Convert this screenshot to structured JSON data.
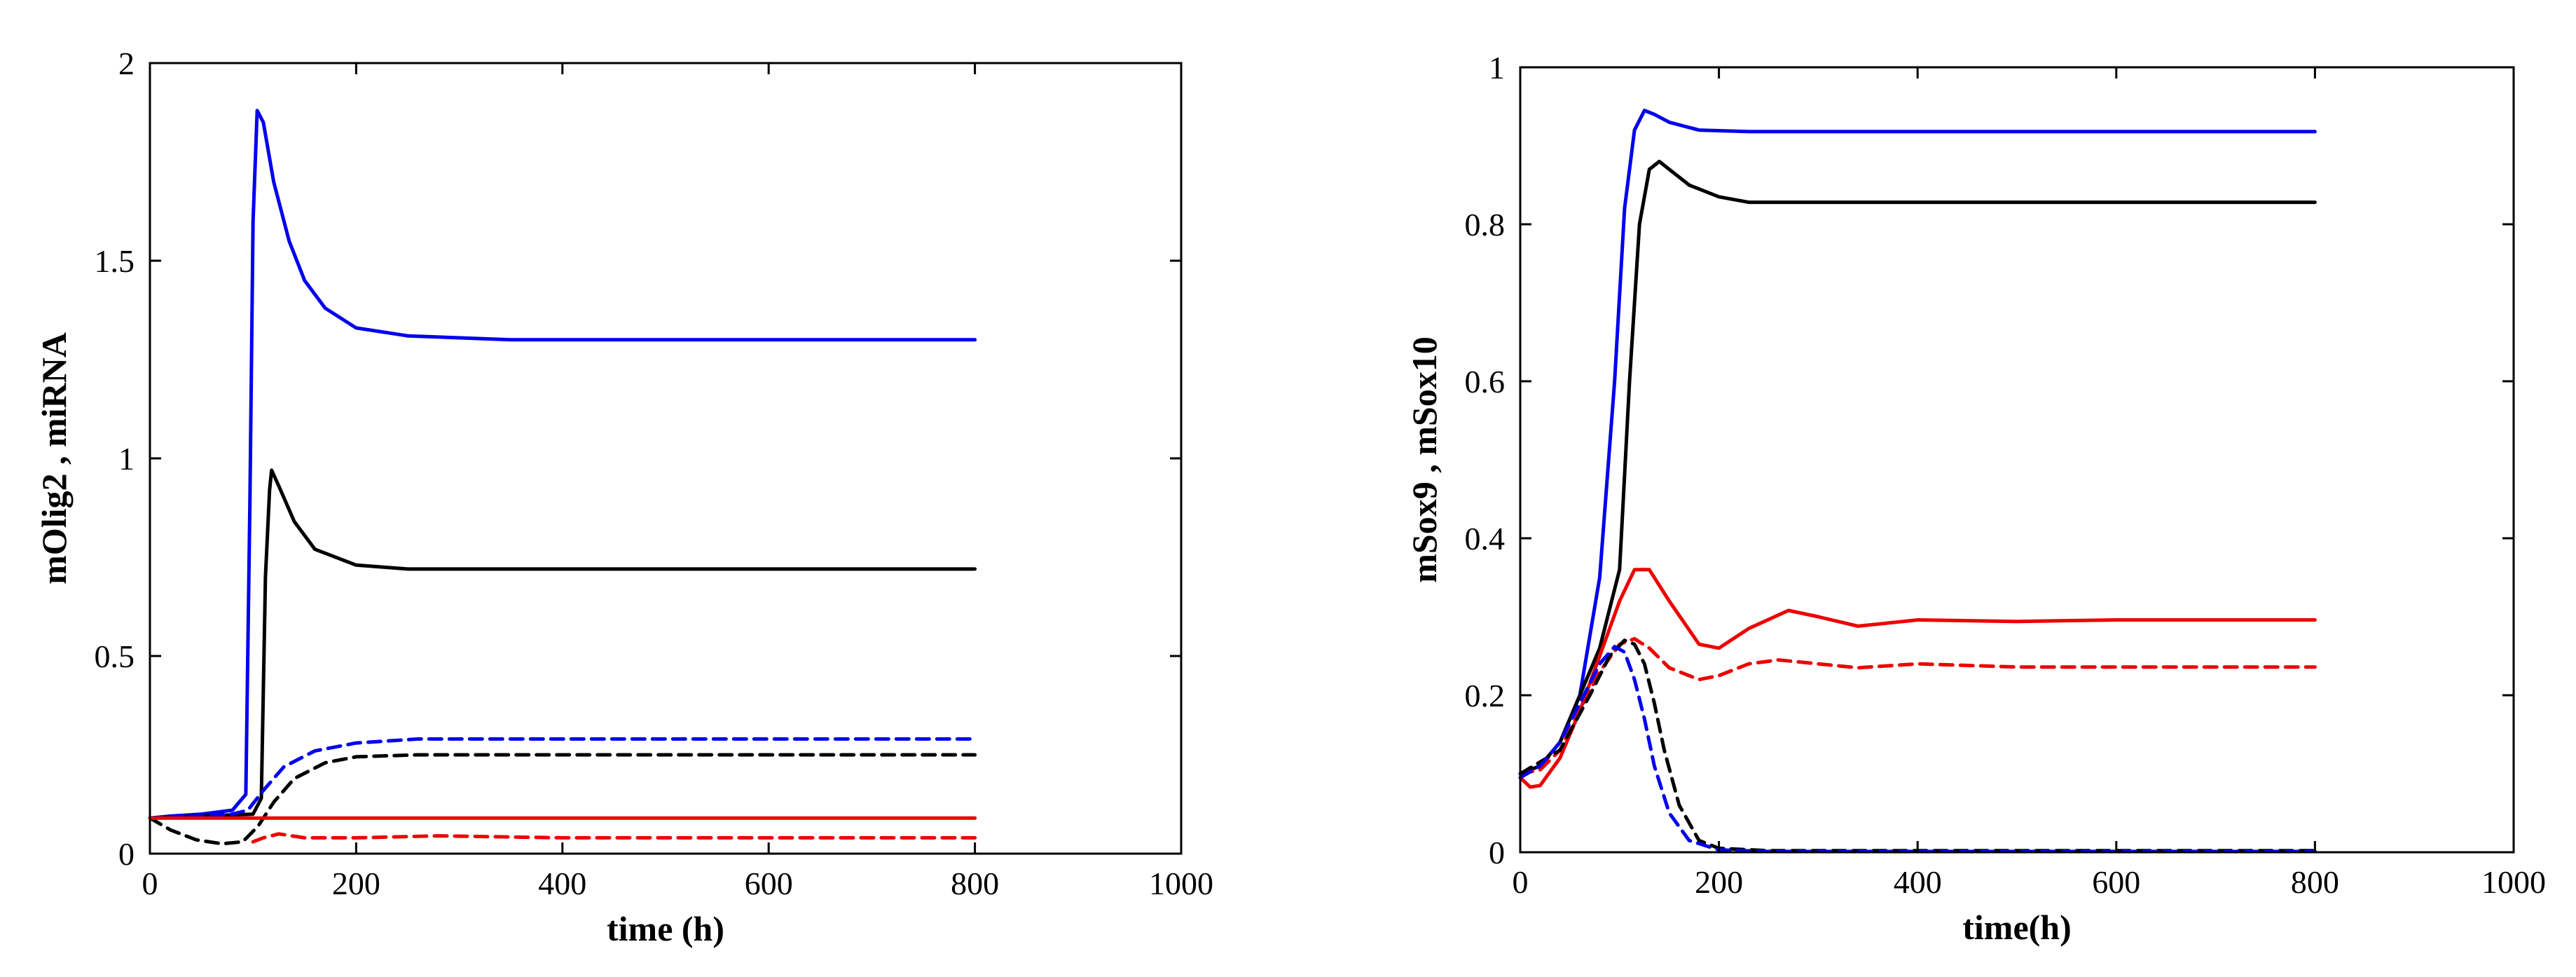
{
  "chart_data": [
    {
      "type": "line",
      "xlabel": "time (h)",
      "ylabel": "mOlig2 , miRNA",
      "xlim": [
        0,
        1000
      ],
      "ylim": [
        0,
        2
      ],
      "xticks": [
        0,
        200,
        400,
        600,
        800,
        1000
      ],
      "yticks": [
        0,
        0.5,
        1,
        1.5,
        2
      ],
      "xtick_labels": [
        "0",
        "200",
        "400",
        "600",
        "800",
        "1000"
      ],
      "ytick_labels": [
        "0",
        "0.5",
        "1",
        "1.5",
        "2"
      ],
      "series": [
        {
          "name": "blue solid",
          "color": "#0000ee",
          "dashed": false,
          "x": [
            0,
            20,
            50,
            80,
            93,
            97,
            100,
            104,
            110,
            120,
            135,
            150,
            170,
            200,
            250,
            350,
            500,
            800
          ],
          "y": [
            0.09,
            0.095,
            0.1,
            0.11,
            0.15,
            0.9,
            1.6,
            1.88,
            1.85,
            1.7,
            1.55,
            1.45,
            1.38,
            1.33,
            1.31,
            1.3,
            1.3,
            1.3
          ]
        },
        {
          "name": "black solid",
          "color": "#000000",
          "dashed": false,
          "x": [
            0,
            50,
            100,
            108,
            112,
            116,
            118,
            125,
            140,
            160,
            200,
            250,
            350,
            800
          ],
          "y": [
            0.09,
            0.095,
            0.1,
            0.14,
            0.7,
            0.92,
            0.97,
            0.93,
            0.84,
            0.77,
            0.73,
            0.72,
            0.72,
            0.72
          ]
        },
        {
          "name": "blue dashed",
          "color": "#0000ee",
          "dashed": true,
          "x": [
            0,
            50,
            80,
            95,
            110,
            130,
            160,
            200,
            260,
            350,
            800
          ],
          "y": [
            0.09,
            0.095,
            0.1,
            0.11,
            0.16,
            0.22,
            0.26,
            0.28,
            0.29,
            0.29,
            0.29
          ]
        },
        {
          "name": "black dashed",
          "color": "#000000",
          "dashed": true,
          "x": [
            0,
            20,
            45,
            70,
            90,
            105,
            120,
            140,
            170,
            200,
            260,
            350,
            800
          ],
          "y": [
            0.09,
            0.06,
            0.035,
            0.025,
            0.03,
            0.07,
            0.13,
            0.19,
            0.23,
            0.245,
            0.25,
            0.25,
            0.25
          ]
        },
        {
          "name": "red solid",
          "color": "#ee0000",
          "dashed": false,
          "x": [
            0,
            50,
            100,
            200,
            400,
            800
          ],
          "y": [
            0.09,
            0.09,
            0.09,
            0.09,
            0.09,
            0.09
          ]
        },
        {
          "name": "red dashed",
          "color": "#ee0000",
          "dashed": true,
          "x": [
            100,
            110,
            125,
            150,
            200,
            280,
            400,
            500,
            600,
            800
          ],
          "y": [
            0.03,
            0.04,
            0.05,
            0.04,
            0.04,
            0.045,
            0.04,
            0.04,
            0.04,
            0.04
          ]
        }
      ]
    },
    {
      "type": "line",
      "xlabel": "time(h)",
      "ylabel": "mSox9 , mSox10",
      "xlim": [
        0,
        1000
      ],
      "ylim": [
        0,
        1
      ],
      "xticks": [
        0,
        200,
        400,
        600,
        800,
        1000
      ],
      "yticks": [
        0,
        0.2,
        0.4,
        0.6,
        0.8,
        1
      ],
      "xtick_labels": [
        "0",
        "200",
        "400",
        "600",
        "800",
        "1000"
      ],
      "ytick_labels": [
        "0",
        "0.2",
        "0.4",
        "0.6",
        "0.8",
        "1"
      ],
      "series": [
        {
          "name": "blue solid",
          "color": "#0000ee",
          "dashed": false,
          "x": [
            0,
            20,
            40,
            60,
            80,
            95,
            105,
            115,
            125,
            135,
            150,
            180,
            230,
            300,
            800
          ],
          "y": [
            0.1,
            0.11,
            0.14,
            0.2,
            0.35,
            0.6,
            0.82,
            0.92,
            0.945,
            0.94,
            0.93,
            0.92,
            0.918,
            0.918,
            0.918
          ]
        },
        {
          "name": "black solid",
          "color": "#000000",
          "dashed": false,
          "x": [
            0,
            20,
            40,
            60,
            80,
            100,
            110,
            120,
            130,
            140,
            150,
            170,
            200,
            230,
            300,
            800
          ],
          "y": [
            0.1,
            0.11,
            0.14,
            0.2,
            0.26,
            0.36,
            0.6,
            0.8,
            0.87,
            0.88,
            0.87,
            0.85,
            0.835,
            0.828,
            0.828,
            0.828
          ]
        },
        {
          "name": "red solid",
          "color": "#ee0000",
          "dashed": false,
          "x": [
            0,
            10,
            20,
            40,
            60,
            80,
            100,
            115,
            130,
            150,
            180,
            200,
            230,
            270,
            300,
            340,
            400,
            500,
            600,
            800
          ],
          "y": [
            0.095,
            0.083,
            0.085,
            0.12,
            0.18,
            0.25,
            0.32,
            0.36,
            0.36,
            0.32,
            0.265,
            0.26,
            0.285,
            0.308,
            0.3,
            0.288,
            0.296,
            0.294,
            0.296,
            0.296
          ]
        },
        {
          "name": "red dashed",
          "color": "#ee0000",
          "dashed": true,
          "x": [
            0,
            20,
            40,
            60,
            80,
            100,
            115,
            130,
            150,
            180,
            200,
            230,
            260,
            300,
            340,
            400,
            500,
            800
          ],
          "y": [
            0.1,
            0.105,
            0.13,
            0.18,
            0.23,
            0.265,
            0.272,
            0.26,
            0.235,
            0.22,
            0.225,
            0.24,
            0.245,
            0.24,
            0.235,
            0.24,
            0.236,
            0.236
          ]
        },
        {
          "name": "black dashed",
          "color": "#000000",
          "dashed": true,
          "x": [
            0,
            40,
            70,
            90,
            105,
            115,
            125,
            135,
            145,
            160,
            180,
            200,
            250,
            800
          ],
          "y": [
            0.1,
            0.13,
            0.2,
            0.25,
            0.27,
            0.265,
            0.24,
            0.19,
            0.13,
            0.06,
            0.015,
            0.005,
            0.002,
            0.002
          ]
        },
        {
          "name": "blue dashed",
          "color": "#0000ee",
          "dashed": true,
          "x": [
            0,
            20,
            40,
            60,
            80,
            95,
            105,
            115,
            125,
            135,
            150,
            170,
            200,
            250,
            800
          ],
          "y": [
            0.095,
            0.11,
            0.14,
            0.19,
            0.24,
            0.262,
            0.255,
            0.22,
            0.17,
            0.11,
            0.05,
            0.015,
            0.003,
            0.001,
            0.001
          ]
        }
      ]
    }
  ]
}
